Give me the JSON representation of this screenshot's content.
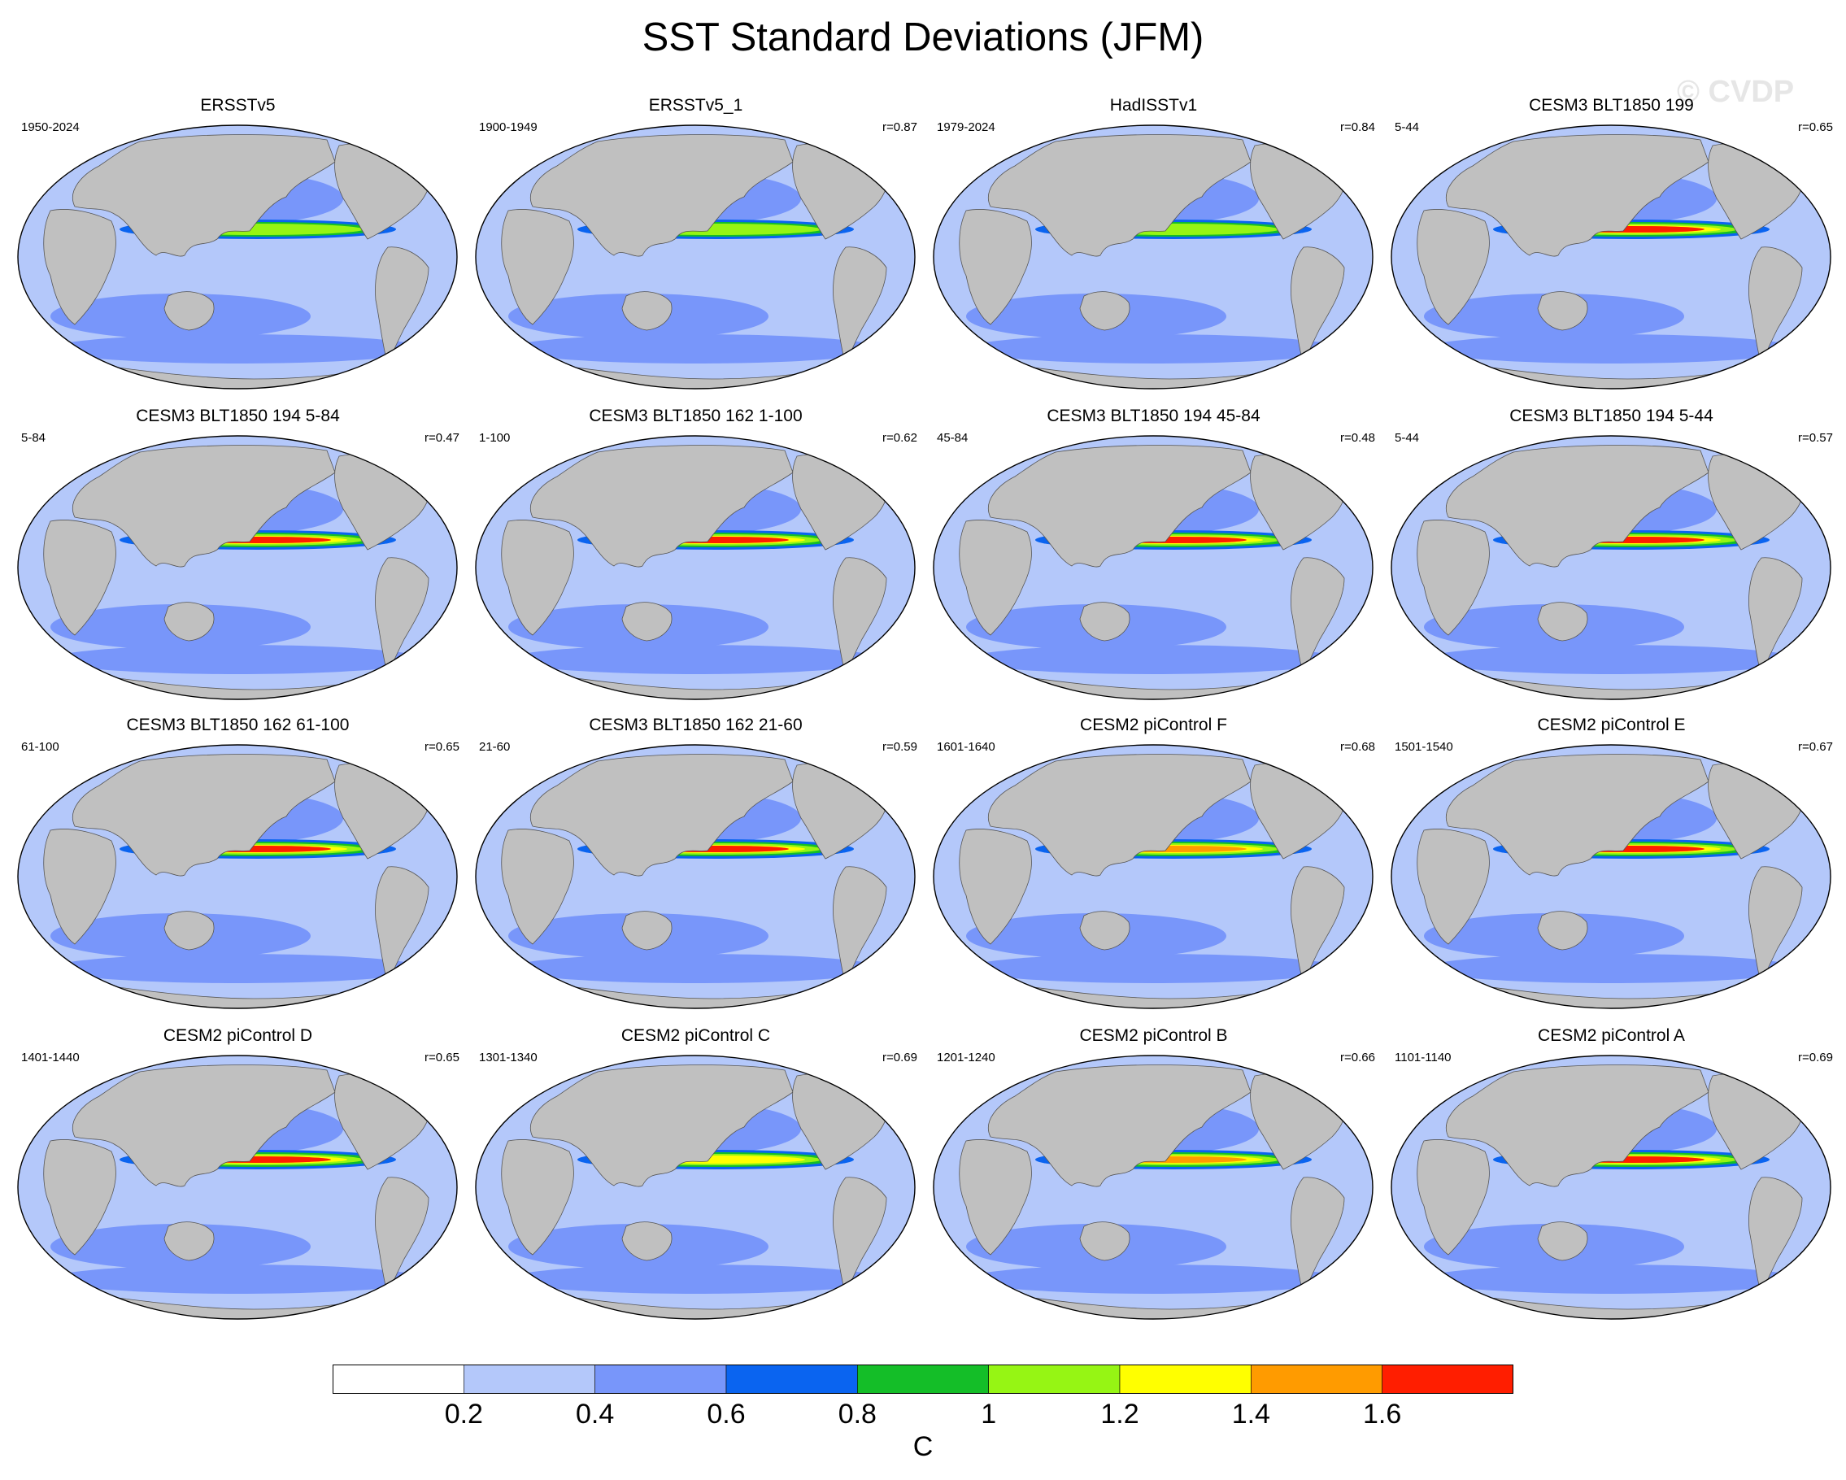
{
  "title": "SST Standard Deviations (JFM)",
  "watermark": "© CVDP",
  "colors": {
    "land": "#c0c0c0",
    "levels": [
      "#ffffff",
      "#b4c8fa",
      "#7896fa",
      "#0a64f0",
      "#14be28",
      "#96f514",
      "#ffff00",
      "#ff9b00",
      "#ff1e00"
    ]
  },
  "colorbar": {
    "labels": [
      "0.2",
      "0.4",
      "0.6",
      "0.8",
      "1",
      "1.2",
      "1.4",
      "1.6"
    ],
    "units": "C"
  },
  "panels": [
    {
      "title": "ERSSTv5",
      "period": "1950-2024",
      "r": "",
      "max_level": 5
    },
    {
      "title": "ERSSTv5_1",
      "period": "1900-1949",
      "r": "r=0.87",
      "max_level": 5
    },
    {
      "title": "HadISSTv1",
      "period": "1979-2024",
      "r": "r=0.84",
      "max_level": 5
    },
    {
      "title": "CESM3 BLT1850 199",
      "period": "5-44",
      "r": "r=0.65",
      "max_level": 8
    },
    {
      "title": "CESM3 BLT1850 194 5-84",
      "period": "5-84",
      "r": "r=0.47",
      "max_level": 8
    },
    {
      "title": "CESM3 BLT1850 162 1-100",
      "period": "1-100",
      "r": "r=0.62",
      "max_level": 8
    },
    {
      "title": "CESM3 BLT1850 194 45-84",
      "period": "45-84",
      "r": "r=0.48",
      "max_level": 8
    },
    {
      "title": "CESM3 BLT1850 194 5-44",
      "period": "5-44",
      "r": "r=0.57",
      "max_level": 8
    },
    {
      "title": "CESM3 BLT1850 162 61-100",
      "period": "61-100",
      "r": "r=0.65",
      "max_level": 8
    },
    {
      "title": "CESM3 BLT1850 162 21-60",
      "period": "21-60",
      "r": "r=0.59",
      "max_level": 8
    },
    {
      "title": "CESM2 piControl F",
      "period": "1601-1640",
      "r": "r=0.68",
      "max_level": 7
    },
    {
      "title": "CESM2 piControl E",
      "period": "1501-1540",
      "r": "r=0.67",
      "max_level": 8
    },
    {
      "title": "CESM2 piControl D",
      "period": "1401-1440",
      "r": "r=0.65",
      "max_level": 8
    },
    {
      "title": "CESM2 piControl C",
      "period": "1301-1340",
      "r": "r=0.69",
      "max_level": 6
    },
    {
      "title": "CESM2 piControl B",
      "period": "1201-1240",
      "r": "r=0.66",
      "max_level": 7
    },
    {
      "title": "CESM2 piControl A",
      "period": "1101-1140",
      "r": "r=0.69",
      "max_level": 8
    }
  ]
}
